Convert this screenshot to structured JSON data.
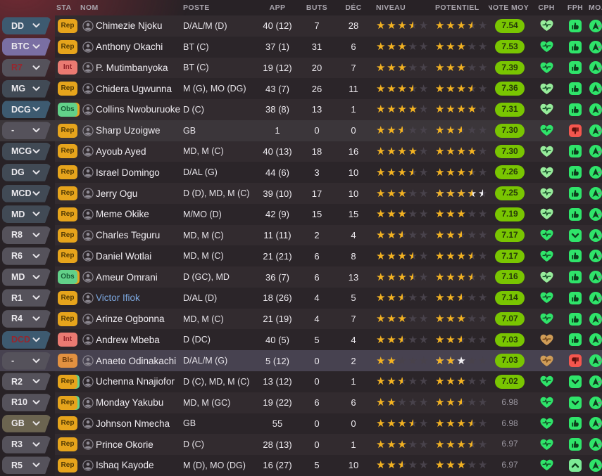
{
  "header": {
    "sta": "STA",
    "nom": "NOM",
    "poste": "POSTE",
    "app": "APP",
    "buts": "BUTS",
    "dec": "DÉC",
    "niveau": "NIVEAU",
    "potentiel": "POTENTIEL",
    "note_moy": "NOTE MOY",
    "cph": "CPH",
    "fph": "FPH",
    "mo": "MO...",
    "sorted_by": "note_moy",
    "sort_direction": "desc"
  },
  "colors": {
    "bg": "#282226",
    "corner_tint": "#9e303c",
    "header_text": "#a8a4ac",
    "row_bg_odd": "#322b2f",
    "row_bg_even": "#2b2529",
    "row_bg_lighter": "#3b363a",
    "row_bg_selected": "#474250",
    "star_gold": "#f4b321",
    "star_empty": "#48424b",
    "star_white": "#f2f0f4",
    "note_badge_bg": "#79c501",
    "note_badge_text": "#26390a",
    "note_plain_text": "#9b97a0",
    "heart_vivid": "#2fe46a",
    "heart_pale": "#97ec9b",
    "heart_tan": "#cf9c57",
    "heart_pulse_green": "#134a24",
    "heart_pulse_tan": "#70451a",
    "fph_green": "#2fe46a",
    "fph_red": "#f4564e",
    "fph_up_green": "#7ceb96",
    "fph_glyph_dark": "#0d3d1c",
    "fph_glyph_red_dark": "#5c100c",
    "mo_green": "#2fe46a",
    "mo_glyph": "#0d3d1c",
    "pill_blue": "#3d5a70",
    "pill_slate": "#414a55",
    "pill_gray": "#55525b",
    "pill_purple": "#7a6fa3",
    "pill_olive": "#6b6450",
    "pill_text": "#eceaee",
    "pill_text_red": "#97262e",
    "sta_rep_bg": "#e6a41c",
    "sta_rep_text": "#523a04",
    "sta_int_bg": "#ea7a72",
    "sta_int_text": "#8e2026",
    "sta_obs_bg": "#62d189",
    "sta_obs_text": "#175c36",
    "sta_bls_bg": "#e29140",
    "sta_bls_text": "#6e3c0c",
    "name_link": "#7ba6dd",
    "person_icon": "#8f8b94",
    "sliver": "#8a8690"
  },
  "rows": [
    {
      "pos": "DD",
      "pos_type": "blue",
      "pos_red": false,
      "sta": "Rep",
      "sta_type": "rep",
      "sta_edge": null,
      "name": "Chimezie Njoku",
      "link": false,
      "poste": "D/AL/M (D)",
      "app": "40 (12)",
      "buts": "7",
      "dec": "28",
      "niveau": [
        3.5,
        0
      ],
      "potentiel": [
        3.5,
        0
      ],
      "note": "7.54",
      "note_badge": true,
      "heart": "pale",
      "fph": "up",
      "tint": ""
    },
    {
      "pos": "BTC",
      "pos_type": "purple",
      "pos_red": false,
      "sta": "Rep",
      "sta_type": "rep",
      "sta_edge": null,
      "name": "Anthony Okachi",
      "link": false,
      "poste": "BT (C)",
      "app": "37 (1)",
      "buts": "31",
      "dec": "6",
      "niveau": [
        3,
        0
      ],
      "potentiel": [
        3,
        0
      ],
      "note": "7.53",
      "note_badge": true,
      "heart": "vivid",
      "fph": "up",
      "tint": ""
    },
    {
      "pos": "R7",
      "pos_type": "gray",
      "pos_red": true,
      "sta": "Int",
      "sta_type": "int",
      "sta_edge": null,
      "name": "P. Mutimbanyoka",
      "link": false,
      "poste": "BT (C)",
      "app": "19 (12)",
      "buts": "20",
      "dec": "7",
      "niveau": [
        3,
        0
      ],
      "potentiel": [
        3,
        0
      ],
      "note": "7.39",
      "note_badge": true,
      "heart": "vivid",
      "fph": "up",
      "tint": ""
    },
    {
      "pos": "MG",
      "pos_type": "slate",
      "pos_red": false,
      "sta": "Rep",
      "sta_type": "rep",
      "sta_edge": null,
      "name": "Chidera Ugwunna",
      "link": false,
      "poste": "M (G), MO (DG)",
      "app": "43 (7)",
      "buts": "26",
      "dec": "11",
      "niveau": [
        3.5,
        0
      ],
      "potentiel": [
        3.5,
        0
      ],
      "note": "7.36",
      "note_badge": true,
      "heart": "pale",
      "fph": "up",
      "tint": ""
    },
    {
      "pos": "DCG",
      "pos_type": "blue",
      "pos_red": false,
      "sta": "Obs",
      "sta_type": "obs",
      "sta_edge": "#e6a41c",
      "name": "Collins Nwoburuoke",
      "link": false,
      "poste": "D (C)",
      "app": "38 (8)",
      "buts": "13",
      "dec": "1",
      "niveau": [
        4,
        0
      ],
      "potentiel": [
        4,
        0
      ],
      "note": "7.31",
      "note_badge": true,
      "heart": "pale",
      "fph": "up",
      "tint": ""
    },
    {
      "pos": "-",
      "pos_type": "gray",
      "pos_red": false,
      "sta": "Rep",
      "sta_type": "rep",
      "sta_edge": null,
      "name": "Sharp Uzoigwe",
      "link": false,
      "poste": "GB",
      "app": "1",
      "buts": "0",
      "dec": "0",
      "niveau": [
        2.5,
        0
      ],
      "potentiel": [
        2.5,
        0
      ],
      "note": "7.30",
      "note_badge": true,
      "heart": "vivid",
      "fph": "down",
      "tint": "lighter"
    },
    {
      "pos": "MCG",
      "pos_type": "slate",
      "pos_red": false,
      "sta": "Rep",
      "sta_type": "rep",
      "sta_edge": null,
      "name": "Ayoub Ayed",
      "link": false,
      "poste": "MD, M (C)",
      "app": "40 (13)",
      "buts": "18",
      "dec": "16",
      "niveau": [
        4,
        0
      ],
      "potentiel": [
        4,
        0
      ],
      "note": "7.30",
      "note_badge": true,
      "heart": "pale",
      "fph": "up",
      "tint": ""
    },
    {
      "pos": "DG",
      "pos_type": "slate",
      "pos_red": false,
      "sta": "Rep",
      "sta_type": "rep",
      "sta_edge": null,
      "name": "Israel Domingo",
      "link": false,
      "poste": "D/AL (G)",
      "app": "44 (6)",
      "buts": "3",
      "dec": "10",
      "niveau": [
        3.5,
        0
      ],
      "potentiel": [
        3.5,
        0
      ],
      "note": "7.26",
      "note_badge": true,
      "heart": "pale",
      "fph": "up",
      "tint": ""
    },
    {
      "pos": "MCD",
      "pos_type": "slate",
      "pos_red": false,
      "sta": "Rep",
      "sta_type": "rep",
      "sta_edge": null,
      "name": "Jerry Ogu",
      "link": false,
      "poste": "D (D), MD, M (C)",
      "app": "39 (10)",
      "buts": "17",
      "dec": "10",
      "niveau": [
        3,
        0
      ],
      "potentiel": [
        3.5,
        1
      ],
      "note": "7.25",
      "note_badge": true,
      "heart": "pale",
      "fph": "up",
      "tint": ""
    },
    {
      "pos": "MD",
      "pos_type": "slate",
      "pos_red": false,
      "sta": "Rep",
      "sta_type": "rep",
      "sta_edge": null,
      "name": "Meme Okike",
      "link": false,
      "poste": "M/MO (D)",
      "app": "42 (9)",
      "buts": "15",
      "dec": "15",
      "niveau": [
        3,
        0
      ],
      "potentiel": [
        3,
        0
      ],
      "note": "7.19",
      "note_badge": true,
      "heart": "pale",
      "fph": "up",
      "tint": ""
    },
    {
      "pos": "R8",
      "pos_type": "gray",
      "pos_red": false,
      "sta": "Rep",
      "sta_type": "rep",
      "sta_edge": null,
      "name": "Charles Teguru",
      "link": false,
      "poste": "MD, M (C)",
      "app": "11 (11)",
      "buts": "2",
      "dec": "4",
      "niveau": [
        2.5,
        0
      ],
      "potentiel": [
        2.5,
        0
      ],
      "note": "7.17",
      "note_badge": true,
      "heart": "vivid",
      "fph": "chev-down",
      "tint": ""
    },
    {
      "pos": "R6",
      "pos_type": "gray",
      "pos_red": false,
      "sta": "Rep",
      "sta_type": "rep",
      "sta_edge": null,
      "name": "Daniel Wotlai",
      "link": false,
      "poste": "MD, M (C)",
      "app": "21 (21)",
      "buts": "6",
      "dec": "8",
      "niveau": [
        3.5,
        0
      ],
      "potentiel": [
        3.5,
        0
      ],
      "note": "7.17",
      "note_badge": true,
      "heart": "vivid",
      "fph": "up",
      "tint": ""
    },
    {
      "pos": "MD",
      "pos_type": "gray",
      "pos_red": false,
      "sta": "Obs",
      "sta_type": "obs",
      "sta_edge": "#e6a41c",
      "name": "Ameur Omrani",
      "link": false,
      "poste": "D (GC), MD",
      "app": "36 (7)",
      "buts": "6",
      "dec": "13",
      "niveau": [
        3.5,
        0
      ],
      "potentiel": [
        3.5,
        0
      ],
      "note": "7.16",
      "note_badge": true,
      "heart": "pale",
      "fph": "up",
      "tint": ""
    },
    {
      "pos": "R1",
      "pos_type": "gray",
      "pos_red": false,
      "sta": "Rep",
      "sta_type": "rep",
      "sta_edge": null,
      "name": "Victor Ifiok",
      "link": true,
      "poste": "D/AL (D)",
      "app": "18 (26)",
      "buts": "4",
      "dec": "5",
      "niveau": [
        2.5,
        0
      ],
      "potentiel": [
        2.5,
        0
      ],
      "note": "7.14",
      "note_badge": true,
      "heart": "vivid",
      "fph": "up",
      "tint": ""
    },
    {
      "pos": "R4",
      "pos_type": "gray",
      "pos_red": false,
      "sta": "Rep",
      "sta_type": "rep",
      "sta_edge": null,
      "name": "Arinze Ogbonna",
      "link": false,
      "poste": "MD, M (C)",
      "app": "21 (19)",
      "buts": "4",
      "dec": "7",
      "niveau": [
        3,
        0
      ],
      "potentiel": [
        3,
        0
      ],
      "note": "7.07",
      "note_badge": true,
      "heart": "vivid",
      "fph": "up",
      "tint": ""
    },
    {
      "pos": "DCD",
      "pos_type": "blue",
      "pos_red": true,
      "sta": "Int",
      "sta_type": "int",
      "sta_edge": null,
      "name": "Andrew Mbeba",
      "link": false,
      "poste": "D (DC)",
      "app": "40 (5)",
      "buts": "5",
      "dec": "4",
      "niveau": [
        2.5,
        0
      ],
      "potentiel": [
        2.5,
        0
      ],
      "note": "7.03",
      "note_badge": true,
      "heart": "tan",
      "fph": "up",
      "tint": ""
    },
    {
      "pos": "-",
      "pos_type": "gray",
      "pos_red": false,
      "sta": "Bls",
      "sta_type": "bls",
      "sta_edge": null,
      "name": "Anaeto Odinakachi",
      "link": false,
      "poste": "D/AL/M (G)",
      "app": "5 (12)",
      "buts": "0",
      "dec": "2",
      "niveau": [
        2,
        0
      ],
      "potentiel": [
        2,
        1
      ],
      "note": "7.03",
      "note_badge": true,
      "heart": "tan",
      "fph": "down",
      "tint": "selected"
    },
    {
      "pos": "R2",
      "pos_type": "gray",
      "pos_red": false,
      "sta": "Rep",
      "sta_type": "rep",
      "sta_edge": "#62d189",
      "name": "Uchenna Nnajiofor",
      "link": false,
      "poste": "D (C), MD, M (C)",
      "app": "13 (12)",
      "buts": "0",
      "dec": "1",
      "niveau": [
        2.5,
        0
      ],
      "potentiel": [
        3,
        0
      ],
      "note": "7.02",
      "note_badge": true,
      "heart": "vivid",
      "fph": "chev-down",
      "tint": ""
    },
    {
      "pos": "R10",
      "pos_type": "gray",
      "pos_red": false,
      "sta": "Rep",
      "sta_type": "rep",
      "sta_edge": "#62d189",
      "name": "Monday Yakubu",
      "link": false,
      "poste": "MD, M (GC)",
      "app": "19 (22)",
      "buts": "6",
      "dec": "6",
      "niveau": [
        2,
        0
      ],
      "potentiel": [
        2.5,
        0
      ],
      "note": "6.98",
      "note_badge": false,
      "heart": "vivid",
      "fph": "chev-down",
      "tint": ""
    },
    {
      "pos": "GB",
      "pos_type": "olive",
      "pos_red": false,
      "sta": "Rep",
      "sta_type": "rep",
      "sta_edge": null,
      "name": "Johnson Nmecha",
      "link": false,
      "poste": "GB",
      "app": "55",
      "buts": "0",
      "dec": "0",
      "niveau": [
        3.5,
        0
      ],
      "potentiel": [
        3.5,
        0
      ],
      "note": "6.98",
      "note_badge": false,
      "heart": "vivid",
      "fph": "up",
      "tint": ""
    },
    {
      "pos": "R3",
      "pos_type": "gray",
      "pos_red": false,
      "sta": "Rep",
      "sta_type": "rep",
      "sta_edge": null,
      "name": "Prince Okorie",
      "link": false,
      "poste": "D (C)",
      "app": "28 (13)",
      "buts": "0",
      "dec": "1",
      "niveau": [
        3,
        0
      ],
      "potentiel": [
        3.5,
        0
      ],
      "note": "6.97",
      "note_badge": false,
      "heart": "vivid",
      "fph": "up",
      "tint": ""
    },
    {
      "pos": "R5",
      "pos_type": "gray",
      "pos_red": false,
      "sta": "Rep",
      "sta_type": "rep",
      "sta_edge": null,
      "name": "Ishaq Kayode",
      "link": false,
      "poste": "M (D), MO (DG)",
      "app": "16 (27)",
      "buts": "5",
      "dec": "10",
      "niveau": [
        2.5,
        0
      ],
      "potentiel": [
        3,
        0
      ],
      "note": "6.97",
      "note_badge": false,
      "heart": "vivid",
      "fph": "chev-up",
      "tint": ""
    }
  ]
}
